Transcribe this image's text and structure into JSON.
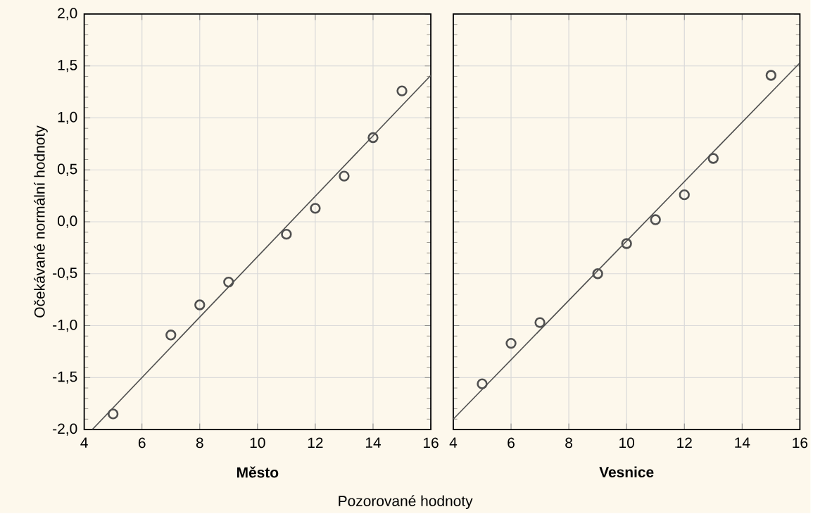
{
  "chart_data": [
    {
      "type": "scatter",
      "xlabel": "Město",
      "ylabel": "Očekávané normální hodnoty",
      "annotations": [
        "Pozorované hodnoty"
      ],
      "xlim": [
        4,
        16
      ],
      "ylim": [
        -2,
        2
      ],
      "xticks": [
        4,
        6,
        8,
        10,
        12,
        14,
        16
      ],
      "yticks": [
        {
          "value": -2,
          "label": "-2,0"
        },
        {
          "value": -1.5,
          "label": "-1,5"
        },
        {
          "value": -1,
          "label": "-1,0"
        },
        {
          "value": -0.5,
          "label": "-0,5"
        },
        {
          "value": 0,
          "label": "0,0"
        },
        {
          "value": 0.5,
          "label": "0,5"
        },
        {
          "value": 1,
          "label": "1,0"
        },
        {
          "value": 1.5,
          "label": "1,5"
        },
        {
          "value": 2,
          "label": "2,0"
        }
      ],
      "grid": true,
      "series": [
        {
          "type": "line",
          "color": "#505050",
          "x": [
            4.28,
            16
          ],
          "values": [
            -2.0,
            1.41
          ]
        },
        {
          "marker": "circle",
          "color": "#505050",
          "x": [
            5,
            7,
            8,
            9,
            11,
            12,
            13,
            14,
            15
          ],
          "values": [
            -1.85,
            -1.09,
            -0.8,
            -0.58,
            -0.12,
            0.13,
            0.44,
            0.81,
            1.26
          ]
        }
      ]
    },
    {
      "type": "scatter",
      "xlabel": "Vesnice",
      "xlim": [
        4,
        16
      ],
      "ylim": [
        -2,
        2
      ],
      "xticks": [
        4,
        6,
        8,
        10,
        12,
        14,
        16
      ],
      "yticks": [
        -2,
        -1.5,
        -1,
        -0.5,
        0,
        0.5,
        1,
        1.5,
        2
      ],
      "tick_labels": "x",
      "grid": true,
      "series": [
        {
          "type": "line",
          "color": "#505050",
          "x": [
            4,
            16
          ],
          "values": [
            -1.9,
            1.53
          ]
        },
        {
          "marker": "circle",
          "color": "#505050",
          "x": [
            5,
            6,
            7,
            9,
            10,
            11,
            12,
            13,
            15
          ],
          "values": [
            -1.56,
            -1.17,
            -0.97,
            -0.5,
            -0.21,
            0.02,
            0.26,
            0.61,
            1.41
          ]
        }
      ]
    }
  ]
}
